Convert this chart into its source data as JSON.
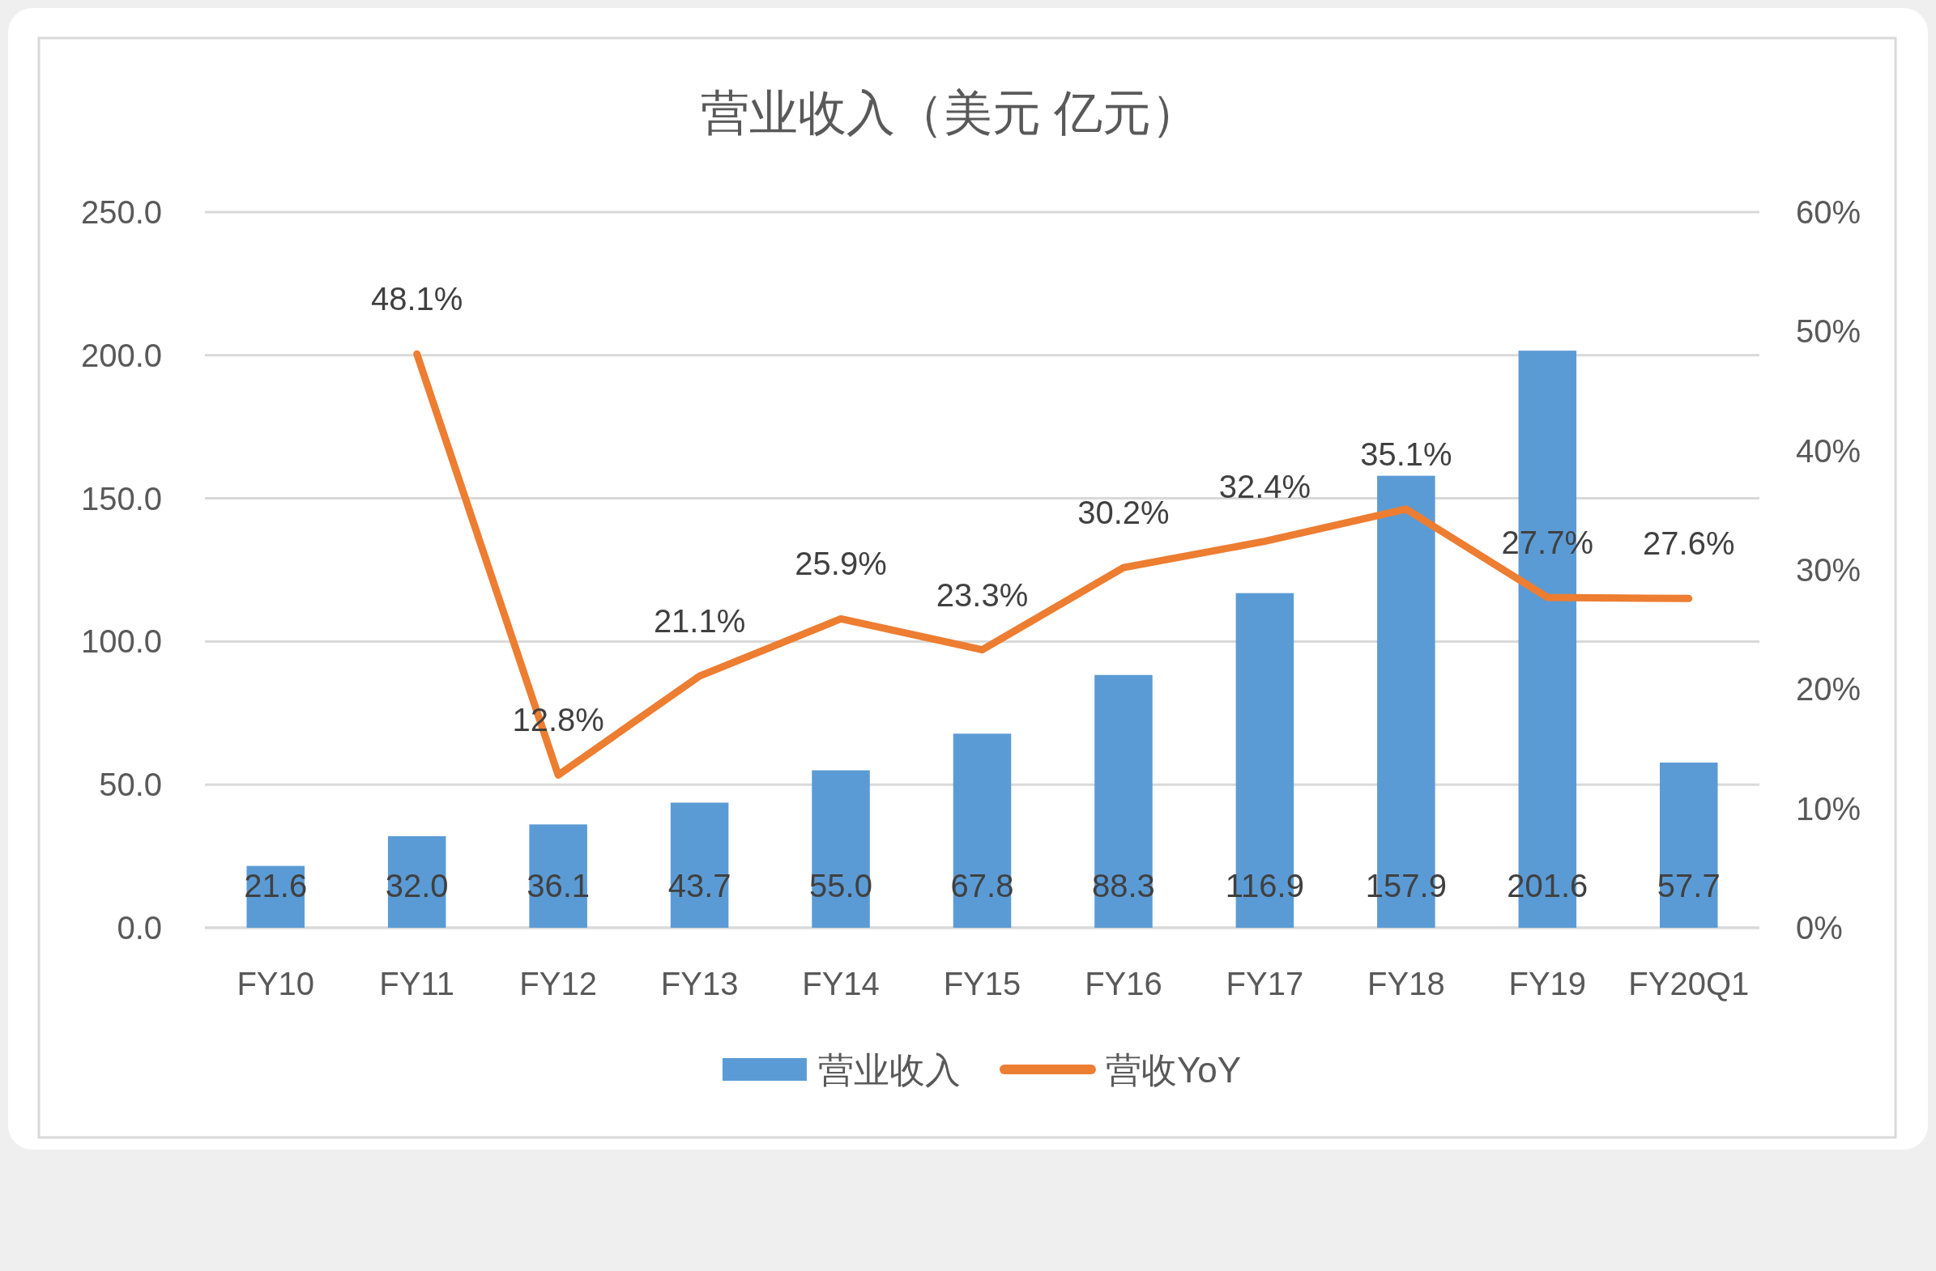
{
  "chart_data": {
    "type": "bar",
    "title": "营业收入（美元 亿元）",
    "categories": [
      "FY10",
      "FY11",
      "FY12",
      "FY13",
      "FY14",
      "FY15",
      "FY16",
      "FY17",
      "FY18",
      "FY19",
      "FY20Q1"
    ],
    "series": [
      {
        "name": "营业收入",
        "color": "#5b9bd5",
        "values": [
          21.6,
          32.0,
          36.1,
          43.7,
          55.0,
          67.8,
          88.3,
          116.9,
          157.9,
          201.6,
          57.7
        ],
        "value_labels": [
          "21.6",
          "32.0",
          "36.1",
          "43.7",
          "55.0",
          "67.8",
          "88.3",
          "116.9",
          "157.9",
          "201.6",
          "57.7"
        ]
      },
      {
        "name": "营收YoY",
        "type": "line",
        "axis": "y2",
        "color": "#ed7d31",
        "values": [
          null,
          48.1,
          12.8,
          21.1,
          25.9,
          23.3,
          30.2,
          32.4,
          35.1,
          27.7,
          27.6
        ],
        "value_labels": [
          null,
          "48.1%",
          "12.8%",
          "21.1%",
          "25.9%",
          "23.3%",
          "30.2%",
          "32.4%",
          "35.1%",
          "27.7%",
          "27.6%"
        ]
      }
    ],
    "ylim": [
      0,
      250
    ],
    "yticks": [
      {
        "value": 0,
        "label": "0.0"
      },
      {
        "value": 50,
        "label": "50.0"
      },
      {
        "value": 100,
        "label": "100.0"
      },
      {
        "value": 150,
        "label": "150.0"
      },
      {
        "value": 200,
        "label": "200.0"
      },
      {
        "value": 250,
        "label": "250.0"
      }
    ],
    "y2lim": [
      0,
      60
    ],
    "y2ticks": [
      {
        "value": 0,
        "label": "0%"
      },
      {
        "value": 10,
        "label": "10%"
      },
      {
        "value": 20,
        "label": "20%"
      },
      {
        "value": 30,
        "label": "30%"
      },
      {
        "value": 40,
        "label": "40%"
      },
      {
        "value": 50,
        "label": "50%"
      },
      {
        "value": 60,
        "label": "60%"
      }
    ],
    "grid": "y",
    "legend": "bottom"
  }
}
